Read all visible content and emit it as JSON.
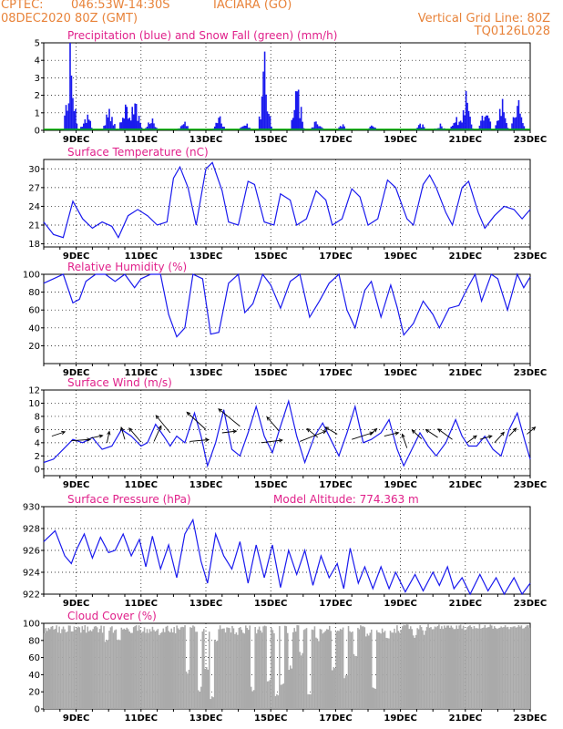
{
  "header": {
    "source": "CPTEC:",
    "coords": "046:53W-14:30S",
    "location": "IACIARA (GO)",
    "run": "08DEC2020 80Z (GMT)",
    "grid_note": "Vertical Grid Line: 80Z",
    "code": "TQ0126L028"
  },
  "x_ticks": [
    "9DEC",
    "11DEC",
    "13DEC",
    "15DEC",
    "17DEC",
    "19DEC",
    "21DEC",
    "23DEC"
  ],
  "colors": {
    "header": "#e8833a",
    "title": "#e0208a",
    "precip": "#1a1aee",
    "snow": "#00b000",
    "line": "#1a1aee",
    "wind_arrow": "#000000",
    "cloud": "#aaaaaa"
  },
  "chart_data": [
    {
      "id": "precip",
      "type": "bar",
      "title": "Precipitation (blue) and Snow Fall (green) (mm/h)",
      "ylim": [
        0,
        5
      ],
      "yticks": [
        "0",
        "1",
        "2",
        "3",
        "4",
        "5"
      ],
      "grid": true,
      "series": [
        {
          "name": "Precipitation",
          "color": "#1a1aee",
          "peaks": [
            [
              8.8,
              5.0
            ],
            [
              9.3,
              1.2
            ],
            [
              10.0,
              1.5
            ],
            [
              10.5,
              2.1
            ],
            [
              10.8,
              2.3
            ],
            [
              11.3,
              0.8
            ],
            [
              12.3,
              0.6
            ],
            [
              13.4,
              0.9
            ],
            [
              14.2,
              0.5
            ],
            [
              14.8,
              4.5
            ],
            [
              15.8,
              3.0
            ],
            [
              16.4,
              0.8
            ],
            [
              17.2,
              0.4
            ],
            [
              18.1,
              0.3
            ],
            [
              19.6,
              0.5
            ],
            [
              20.2,
              0.4
            ],
            [
              20.7,
              0.9
            ],
            [
              21.0,
              2.4
            ],
            [
              21.6,
              1.6
            ],
            [
              22.1,
              2.1
            ],
            [
              22.6,
              2.5
            ]
          ]
        },
        {
          "name": "Snow Fall",
          "color": "#00b000",
          "values": [
            0
          ]
        }
      ]
    },
    {
      "id": "temperature",
      "type": "line",
      "title": "Surface Temperature (nC)",
      "ylim": [
        17.5,
        31.5
      ],
      "yticks": [
        "18",
        "21",
        "24",
        "27",
        "30"
      ],
      "points": [
        [
          8.0,
          21.5
        ],
        [
          8.3,
          19.5
        ],
        [
          8.6,
          19.0
        ],
        [
          8.9,
          24.8
        ],
        [
          9.2,
          22.0
        ],
        [
          9.5,
          20.5
        ],
        [
          9.8,
          21.5
        ],
        [
          10.1,
          20.8
        ],
        [
          10.3,
          19.0
        ],
        [
          10.6,
          22.5
        ],
        [
          10.9,
          23.5
        ],
        [
          11.2,
          22.5
        ],
        [
          11.5,
          21.0
        ],
        [
          11.8,
          21.5
        ],
        [
          12.0,
          28.5
        ],
        [
          12.2,
          30.3
        ],
        [
          12.45,
          27.0
        ],
        [
          12.7,
          21.0
        ],
        [
          13.0,
          30.0
        ],
        [
          13.2,
          31.0
        ],
        [
          13.5,
          26.5
        ],
        [
          13.7,
          21.5
        ],
        [
          14.0,
          21.0
        ],
        [
          14.3,
          28.0
        ],
        [
          14.5,
          27.5
        ],
        [
          14.8,
          21.5
        ],
        [
          15.1,
          21.0
        ],
        [
          15.3,
          26.0
        ],
        [
          15.6,
          25.0
        ],
        [
          15.8,
          21.0
        ],
        [
          16.1,
          22.0
        ],
        [
          16.4,
          26.5
        ],
        [
          16.7,
          25.0
        ],
        [
          16.9,
          21.0
        ],
        [
          17.2,
          22.0
        ],
        [
          17.5,
          26.8
        ],
        [
          17.75,
          25.5
        ],
        [
          18.0,
          21.0
        ],
        [
          18.3,
          22.0
        ],
        [
          18.6,
          28.2
        ],
        [
          18.85,
          27.0
        ],
        [
          19.2,
          22.0
        ],
        [
          19.4,
          21.0
        ],
        [
          19.7,
          27.5
        ],
        [
          19.9,
          29.0
        ],
        [
          20.1,
          27.0
        ],
        [
          20.4,
          23.0
        ],
        [
          20.6,
          21.0
        ],
        [
          20.9,
          27.0
        ],
        [
          21.1,
          28.0
        ],
        [
          21.4,
          23.0
        ],
        [
          21.6,
          20.5
        ],
        [
          21.9,
          22.5
        ],
        [
          22.2,
          24.0
        ],
        [
          22.5,
          23.5
        ],
        [
          22.75,
          22.0
        ],
        [
          23.0,
          23.5
        ]
      ]
    },
    {
      "id": "humidity",
      "type": "line",
      "title": "Relative Humidity (%)",
      "ylim": [
        0,
        100
      ],
      "yticks": [
        "20",
        "40",
        "60",
        "80",
        "100"
      ],
      "points": [
        [
          8.0,
          90
        ],
        [
          8.3,
          95
        ],
        [
          8.6,
          100
        ],
        [
          8.9,
          68
        ],
        [
          9.1,
          72
        ],
        [
          9.3,
          92
        ],
        [
          9.6,
          100
        ],
        [
          9.9,
          100
        ],
        [
          10.2,
          92
        ],
        [
          10.5,
          100
        ],
        [
          10.8,
          85
        ],
        [
          11.0,
          95
        ],
        [
          11.3,
          100
        ],
        [
          11.6,
          100
        ],
        [
          11.85,
          55
        ],
        [
          12.1,
          30
        ],
        [
          12.35,
          40
        ],
        [
          12.6,
          100
        ],
        [
          12.9,
          95
        ],
        [
          13.15,
          33
        ],
        [
          13.4,
          35
        ],
        [
          13.7,
          90
        ],
        [
          14.0,
          100
        ],
        [
          14.2,
          57
        ],
        [
          14.45,
          67
        ],
        [
          14.75,
          100
        ],
        [
          15.0,
          88
        ],
        [
          15.3,
          62
        ],
        [
          15.6,
          92
        ],
        [
          15.9,
          100
        ],
        [
          16.2,
          52
        ],
        [
          16.5,
          70
        ],
        [
          16.8,
          90
        ],
        [
          17.1,
          100
        ],
        [
          17.35,
          60
        ],
        [
          17.6,
          40
        ],
        [
          17.9,
          82
        ],
        [
          18.1,
          92
        ],
        [
          18.4,
          52
        ],
        [
          18.7,
          88
        ],
        [
          18.9,
          63
        ],
        [
          19.1,
          32
        ],
        [
          19.4,
          45
        ],
        [
          19.7,
          70
        ],
        [
          20.0,
          55
        ],
        [
          20.2,
          40
        ],
        [
          20.5,
          62
        ],
        [
          20.8,
          65
        ],
        [
          21.0,
          80
        ],
        [
          21.3,
          100
        ],
        [
          21.5,
          70
        ],
        [
          21.8,
          100
        ],
        [
          22.0,
          95
        ],
        [
          22.3,
          60
        ],
        [
          22.6,
          100
        ],
        [
          22.8,
          85
        ],
        [
          23.0,
          97
        ]
      ]
    },
    {
      "id": "wind",
      "type": "line",
      "title": "Surface Wind (m/s)",
      "ylim": [
        -1,
        12
      ],
      "yticks": [
        "0",
        "2",
        "4",
        "6",
        "8",
        "10",
        "12"
      ],
      "points": [
        [
          8.0,
          1.0
        ],
        [
          8.3,
          1.5
        ],
        [
          8.6,
          3.0
        ],
        [
          8.9,
          4.5
        ],
        [
          9.2,
          4.0
        ],
        [
          9.5,
          4.8
        ],
        [
          9.8,
          3.0
        ],
        [
          10.1,
          3.5
        ],
        [
          10.4,
          6.0
        ],
        [
          10.7,
          5.0
        ],
        [
          11.0,
          3.5
        ],
        [
          11.2,
          4.0
        ],
        [
          11.45,
          6.8
        ],
        [
          11.7,
          5.0
        ],
        [
          11.9,
          3.5
        ],
        [
          12.1,
          5.0
        ],
        [
          12.35,
          4.0
        ],
        [
          12.65,
          8.5
        ],
        [
          12.85,
          5.0
        ],
        [
          13.05,
          0.5
        ],
        [
          13.3,
          4.0
        ],
        [
          13.55,
          9.0
        ],
        [
          13.8,
          3.0
        ],
        [
          14.05,
          2.0
        ],
        [
          14.3,
          5.5
        ],
        [
          14.55,
          9.5
        ],
        [
          14.8,
          5.0
        ],
        [
          15.05,
          2.5
        ],
        [
          15.3,
          6.5
        ],
        [
          15.55,
          10.3
        ],
        [
          15.8,
          5.0
        ],
        [
          16.05,
          1.0
        ],
        [
          16.35,
          5.0
        ],
        [
          16.6,
          7.0
        ],
        [
          16.9,
          4.0
        ],
        [
          17.1,
          2.0
        ],
        [
          17.35,
          5.5
        ],
        [
          17.6,
          9.5
        ],
        [
          17.85,
          4.0
        ],
        [
          18.1,
          4.5
        ],
        [
          18.4,
          5.5
        ],
        [
          18.65,
          7.5
        ],
        [
          18.9,
          3.0
        ],
        [
          19.1,
          0.5
        ],
        [
          19.35,
          3.0
        ],
        [
          19.6,
          5.5
        ],
        [
          19.85,
          3.5
        ],
        [
          20.1,
          2.0
        ],
        [
          20.4,
          4.0
        ],
        [
          20.7,
          7.5
        ],
        [
          20.9,
          5.0
        ],
        [
          21.1,
          3.5
        ],
        [
          21.35,
          3.5
        ],
        [
          21.6,
          5.0
        ],
        [
          21.85,
          3.0
        ],
        [
          22.1,
          2.0
        ],
        [
          22.35,
          6.0
        ],
        [
          22.6,
          8.5
        ],
        [
          22.85,
          4.0
        ],
        [
          23.0,
          1.5
        ]
      ],
      "arrows": [
        [
          8.25,
          5.0,
          0.55,
          0.5
        ],
        [
          8.85,
          4.3,
          0.8,
          0.15
        ],
        [
          9.45,
          4.7,
          0.5,
          0.3
        ],
        [
          9.95,
          4.0,
          0.1,
          1.3
        ],
        [
          10.5,
          4.5,
          -0.15,
          1.4
        ],
        [
          11.0,
          4.1,
          -0.5,
          1.6
        ],
        [
          11.4,
          4.2,
          0.3,
          1.8
        ],
        [
          11.9,
          5.5,
          -0.6,
          2.0
        ],
        [
          12.5,
          4.2,
          0.8,
          0.2
        ],
        [
          13.0,
          6.0,
          -0.8,
          2.0
        ],
        [
          13.5,
          5.5,
          0.6,
          0.2
        ],
        [
          14.05,
          6.5,
          -0.9,
          2.0
        ],
        [
          14.7,
          4.0,
          0.9,
          0.3
        ],
        [
          15.25,
          5.8,
          -0.5,
          1.6
        ],
        [
          15.9,
          4.2,
          1.1,
          1.2
        ],
        [
          16.45,
          4.8,
          -0.45,
          1.0
        ],
        [
          17.05,
          5.3,
          -0.5,
          0.8
        ],
        [
          17.5,
          4.5,
          0.9,
          0.8
        ],
        [
          18.05,
          5.2,
          0.3,
          0.7
        ],
        [
          18.5,
          5.0,
          0.6,
          0.4
        ],
        [
          19.2,
          3.2,
          -0.2,
          1.6
        ],
        [
          19.65,
          4.6,
          -0.4,
          1.0
        ],
        [
          20.15,
          4.8,
          -0.5,
          0.9
        ],
        [
          20.6,
          4.5,
          -0.6,
          1.2
        ],
        [
          21.05,
          4.0,
          0.4,
          0.8
        ],
        [
          21.45,
          4.5,
          0.5,
          0.4
        ],
        [
          21.9,
          4.0,
          0.4,
          1.2
        ],
        [
          22.35,
          5.0,
          0.3,
          0.9
        ],
        [
          22.9,
          5.3,
          0.35,
          0.8
        ]
      ]
    },
    {
      "id": "pressure",
      "type": "line",
      "title": "Surface Pressure (hPa)",
      "annotation": "Model Altitude: 774.363 m",
      "ylim": [
        922,
        930
      ],
      "yticks": [
        "922",
        "924",
        "926",
        "928",
        "930"
      ],
      "points": [
        [
          8.0,
          926.8
        ],
        [
          8.35,
          927.8
        ],
        [
          8.65,
          925.5
        ],
        [
          8.85,
          924.8
        ],
        [
          9.0,
          926.0
        ],
        [
          9.25,
          927.5
        ],
        [
          9.5,
          925.3
        ],
        [
          9.75,
          927.2
        ],
        [
          10.0,
          925.8
        ],
        [
          10.2,
          926.0
        ],
        [
          10.45,
          927.5
        ],
        [
          10.7,
          925.5
        ],
        [
          10.95,
          927.0
        ],
        [
          11.15,
          924.5
        ],
        [
          11.35,
          927.3
        ],
        [
          11.6,
          924.3
        ],
        [
          11.85,
          926.5
        ],
        [
          12.1,
          923.5
        ],
        [
          12.35,
          927.5
        ],
        [
          12.6,
          928.8
        ],
        [
          12.85,
          925.0
        ],
        [
          13.05,
          923.0
        ],
        [
          13.3,
          927.5
        ],
        [
          13.55,
          925.5
        ],
        [
          13.8,
          924.3
        ],
        [
          14.05,
          926.8
        ],
        [
          14.3,
          923.0
        ],
        [
          14.55,
          926.5
        ],
        [
          14.8,
          923.5
        ],
        [
          15.05,
          926.5
        ],
        [
          15.3,
          922.6
        ],
        [
          15.55,
          926.0
        ],
        [
          15.8,
          923.8
        ],
        [
          16.05,
          926.0
        ],
        [
          16.3,
          922.8
        ],
        [
          16.55,
          925.5
        ],
        [
          16.8,
          923.5
        ],
        [
          17.05,
          924.8
        ],
        [
          17.25,
          922.5
        ],
        [
          17.45,
          926.2
        ],
        [
          17.7,
          923.0
        ],
        [
          17.9,
          924.5
        ],
        [
          18.15,
          922.5
        ],
        [
          18.4,
          924.5
        ],
        [
          18.65,
          922.5
        ],
        [
          18.85,
          924.0
        ],
        [
          19.15,
          922.2
        ],
        [
          19.45,
          923.8
        ],
        [
          19.7,
          922.3
        ],
        [
          20.0,
          924.0
        ],
        [
          20.2,
          922.8
        ],
        [
          20.45,
          924.5
        ],
        [
          20.65,
          922.5
        ],
        [
          20.9,
          923.5
        ],
        [
          21.15,
          922.0
        ],
        [
          21.45,
          923.8
        ],
        [
          21.7,
          922.3
        ],
        [
          21.95,
          923.5
        ],
        [
          22.2,
          922.0
        ],
        [
          22.5,
          923.5
        ],
        [
          22.75,
          922.0
        ],
        [
          23.0,
          923.0
        ]
      ]
    },
    {
      "id": "cloud",
      "type": "area",
      "title": "Cloud Cover (%)",
      "ylim": [
        0,
        100
      ],
      "yticks": [
        "0",
        "20",
        "40",
        "60",
        "80",
        "100"
      ],
      "dips": [
        [
          9.9,
          75
        ],
        [
          10.3,
          80
        ],
        [
          11.6,
          85
        ],
        [
          11.9,
          88
        ],
        [
          12.4,
          40
        ],
        [
          12.8,
          20
        ],
        [
          13.0,
          45
        ],
        [
          13.15,
          10
        ],
        [
          13.3,
          75
        ],
        [
          13.9,
          85
        ],
        [
          14.4,
          20
        ],
        [
          14.9,
          30
        ],
        [
          15.15,
          12
        ],
        [
          15.35,
          25
        ],
        [
          15.6,
          45
        ],
        [
          15.9,
          62
        ],
        [
          16.15,
          15
        ],
        [
          16.4,
          78
        ],
        [
          16.9,
          45
        ],
        [
          17.3,
          35
        ],
        [
          17.6,
          60
        ],
        [
          17.95,
          82
        ],
        [
          18.15,
          20
        ],
        [
          18.6,
          80
        ],
        [
          19.4,
          82
        ],
        [
          19.7,
          86
        ],
        [
          21.0,
          90
        ]
      ]
    }
  ]
}
